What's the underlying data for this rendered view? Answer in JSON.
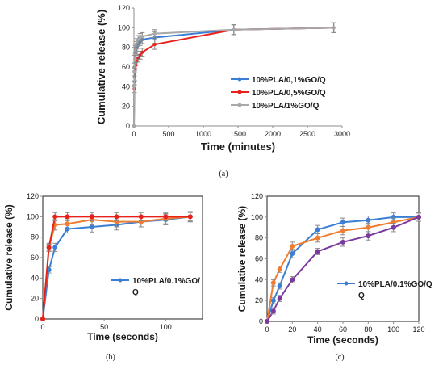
{
  "chart_data": [
    {
      "panel": "(a)",
      "type": "line",
      "xlabel": "Time (minutes)",
      "ylabel": "Cumulative release (%)",
      "xlim": [
        0,
        3000
      ],
      "ylim": [
        0,
        120
      ],
      "xticks": [
        0,
        500,
        1000,
        1500,
        2000,
        2500,
        3000
      ],
      "yticks": [
        0,
        20,
        40,
        60,
        80,
        100,
        120
      ],
      "legend_position": "right",
      "series": [
        {
          "name": "10%PLA/0,1%GO/Q",
          "color": "#3a7fd5",
          "x": [
            0,
            5,
            10,
            20,
            30,
            45,
            60,
            90,
            120,
            300,
            1440,
            2880
          ],
          "y": [
            0,
            45,
            60,
            70,
            76,
            80,
            83,
            86,
            88,
            90,
            98,
            100
          ],
          "err": [
            0,
            4,
            4,
            4,
            4,
            4,
            4,
            4,
            4,
            6,
            5,
            5
          ]
        },
        {
          "name": "10%PLA/0,5%GO/Q",
          "color": "#e8221a",
          "x": [
            0,
            5,
            10,
            20,
            30,
            45,
            60,
            90,
            120,
            300,
            1440,
            2880
          ],
          "y": [
            0,
            38,
            50,
            58,
            62,
            66,
            69,
            72,
            75,
            83,
            98,
            100
          ],
          "err": [
            0,
            4,
            4,
            4,
            4,
            4,
            4,
            4,
            4,
            5,
            5,
            5
          ]
        },
        {
          "name": "10%PLA/1%GO/Q",
          "color": "#a8a8a8",
          "x": [
            0,
            5,
            10,
            20,
            30,
            45,
            60,
            90,
            120,
            300,
            1440,
            2880
          ],
          "y": [
            0,
            55,
            68,
            78,
            82,
            85,
            88,
            90,
            91,
            94,
            98,
            100
          ],
          "err": [
            0,
            4,
            4,
            4,
            4,
            4,
            4,
            4,
            4,
            4,
            5,
            5
          ]
        }
      ]
    },
    {
      "panel": "(b)",
      "type": "line",
      "xlabel": "Time (seconds)",
      "ylabel": "Cumulative release (%)",
      "xlim": [
        0,
        130
      ],
      "ylim": [
        0,
        120
      ],
      "xticks": [
        0,
        50,
        100
      ],
      "yticks": [
        0,
        20,
        40,
        60,
        80,
        100,
        120
      ],
      "legend_position": "right",
      "series": [
        {
          "name": "10%PLA/0.1%GO/Q",
          "color": "#3a7fd5",
          "x": [
            0,
            5,
            10,
            20,
            40,
            60,
            80,
            100,
            120
          ],
          "y": [
            0,
            48,
            70,
            88,
            90,
            92,
            95,
            97,
            100
          ],
          "err": [
            0,
            3,
            4,
            4,
            5,
            5,
            5,
            5,
            5
          ]
        },
        {
          "name": "",
          "color": "#ef7d31",
          "x": [
            0,
            5,
            10,
            20,
            40,
            60,
            80,
            100,
            120
          ],
          "y": [
            0,
            70,
            92,
            93,
            97,
            95,
            95,
            98,
            100
          ],
          "err": [
            0,
            4,
            5,
            5,
            5,
            5,
            5,
            5,
            5
          ]
        },
        {
          "name": "",
          "color": "#e8221a",
          "x": [
            0,
            5,
            10,
            20,
            40,
            60,
            80,
            100,
            120
          ],
          "y": [
            0,
            70,
            100,
            100,
            100,
            100,
            100,
            100,
            100
          ],
          "err": [
            0,
            3,
            4,
            4,
            4,
            4,
            4,
            4,
            4
          ]
        }
      ]
    },
    {
      "panel": "(c)",
      "type": "line",
      "xlabel": "Time (seconds)",
      "ylabel": "Cumulative release (%)",
      "xlim": [
        0,
        120
      ],
      "ylim": [
        0,
        120
      ],
      "xticks": [
        0,
        20,
        40,
        60,
        80,
        100,
        120
      ],
      "yticks": [
        0,
        20,
        40,
        60,
        80,
        100,
        120
      ],
      "legend_position": "right",
      "series": [
        {
          "name": "10%PLA/0.1%GO/Q",
          "color": "#3a7fd5",
          "x": [
            0,
            5,
            10,
            20,
            40,
            60,
            80,
            100,
            120
          ],
          "y": [
            0,
            20,
            34,
            65,
            88,
            95,
            97,
            100,
            100
          ],
          "err": [
            0,
            3,
            3,
            4,
            4,
            4,
            4,
            4,
            4
          ]
        },
        {
          "name": "",
          "color": "#ef7d31",
          "x": [
            0,
            5,
            10,
            20,
            40,
            60,
            80,
            100,
            120
          ],
          "y": [
            0,
            37,
            50,
            72,
            80,
            87,
            90,
            95,
            100
          ],
          "err": [
            0,
            3,
            3,
            4,
            4,
            4,
            4,
            4,
            4
          ]
        },
        {
          "name": "",
          "color": "#7b3a9e",
          "x": [
            0,
            5,
            10,
            20,
            40,
            60,
            80,
            100,
            120
          ],
          "y": [
            0,
            10,
            22,
            40,
            67,
            76,
            82,
            90,
            100
          ],
          "err": [
            0,
            3,
            3,
            3,
            3,
            4,
            4,
            4,
            4
          ]
        }
      ]
    }
  ],
  "legends": {
    "a": [
      "10%PLA/0,1%GO/Q",
      "10%PLA/0,5%GO/Q",
      "10%PLA/1%GO/Q"
    ],
    "b": [
      "10%PLA/0.1%GO/",
      "Q"
    ],
    "c": [
      "10%PLA/0.1%GO/Q",
      "Q"
    ]
  },
  "captions": {
    "a": "(a)",
    "b": "(b)",
    "c": "(c)"
  }
}
